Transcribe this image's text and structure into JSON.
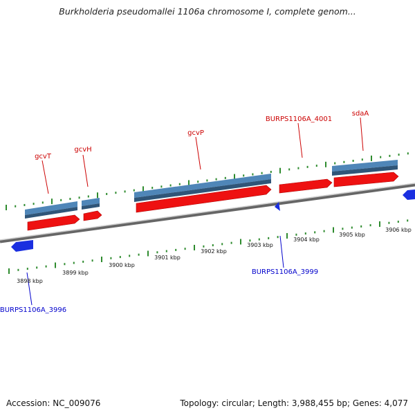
{
  "title": "Burkholderia pseudomallei 1106a chromosome I, complete genom...",
  "footer": {
    "accession": "Accession: NC_009076",
    "summary": "Topology: circular; Length: 3,988,455 bp; Genes: 4,077"
  },
  "colors": {
    "gene_bar": "#4f86b8",
    "cds_arrow": "#ee1111",
    "reverse_feature": "#1a2fe0",
    "upper_label": "#cc0000",
    "lower_label": "#0000cc",
    "tick": "#2e8b2e",
    "axis": "#888888"
  },
  "scale_labels": [
    "3898 kbp",
    "3899 kbp",
    "3900 kbp",
    "3901 kbp",
    "3902 kbp",
    "3903 kbp",
    "3904 kbp",
    "3905 kbp",
    "3906 kbp"
  ],
  "upper_labels": [
    "gcvT",
    "gcvH",
    "gcvP",
    "BURPS1106A_4001",
    "sdaA"
  ],
  "lower_labels": [
    "BURPS1106A_3996",
    "BURPS1106A_3999"
  ]
}
